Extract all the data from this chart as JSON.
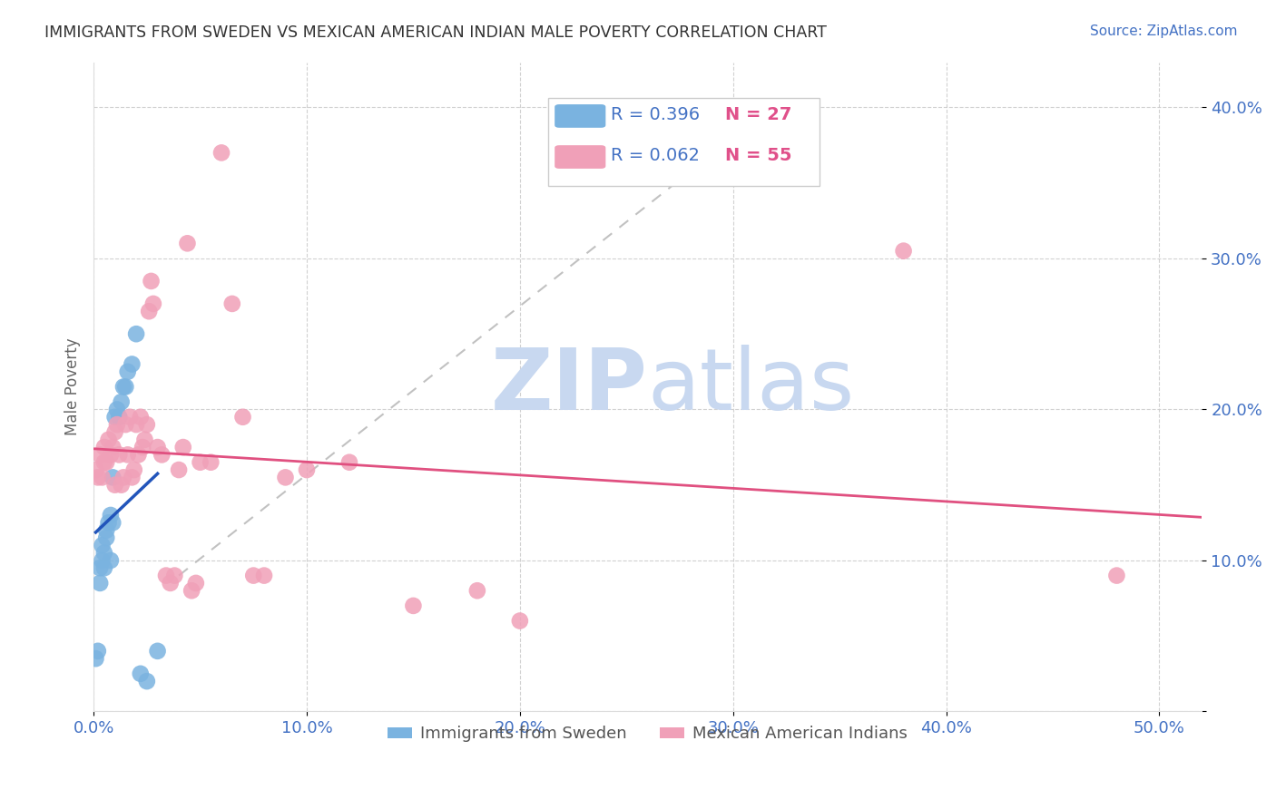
{
  "title": "IMMIGRANTS FROM SWEDEN VS MEXICAN AMERICAN INDIAN MALE POVERTY CORRELATION CHART",
  "source": "Source: ZipAtlas.com",
  "ylabel": "Male Poverty",
  "ytick_values": [
    0.0,
    0.1,
    0.2,
    0.3,
    0.4
  ],
  "ytick_labels": [
    "",
    "10.0%",
    "20.0%",
    "30.0%",
    "40.0%"
  ],
  "xtick_values": [
    0.0,
    0.1,
    0.2,
    0.3,
    0.4,
    0.5
  ],
  "xtick_labels": [
    "0.0%",
    "10.0%",
    "20.0%",
    "30.0%",
    "40.0%",
    "50.0%"
  ],
  "xlim": [
    0.0,
    0.52
  ],
  "ylim": [
    0.0,
    0.43
  ],
  "legend_sweden_R": "R = 0.396",
  "legend_sweden_N": "N = 27",
  "legend_indian_R": "R = 0.062",
  "legend_indian_N": "N = 55",
  "legend_label_sweden": "Immigrants from Sweden",
  "legend_label_indian": "Mexican American Indians",
  "color_sweden": "#7ab3e0",
  "color_indian": "#f0a0b8",
  "trendline_color_sweden": "#2255bb",
  "trendline_color_indian": "#e05080",
  "trendline_color_dashed": "#bbbbbb",
  "watermark_zip": "ZIP",
  "watermark_atlas": "atlas",
  "watermark_color_zip": "#c8d8f0",
  "watermark_color_atlas": "#c8d8f0",
  "background_color": "#ffffff",
  "sweden_x": [
    0.001,
    0.002,
    0.003,
    0.003,
    0.004,
    0.004,
    0.005,
    0.005,
    0.006,
    0.006,
    0.007,
    0.008,
    0.008,
    0.009,
    0.009,
    0.01,
    0.011,
    0.012,
    0.013,
    0.014,
    0.015,
    0.016,
    0.018,
    0.02,
    0.022,
    0.025,
    0.03
  ],
  "sweden_y": [
    0.035,
    0.04,
    0.085,
    0.095,
    0.1,
    0.11,
    0.095,
    0.105,
    0.115,
    0.12,
    0.125,
    0.1,
    0.13,
    0.125,
    0.155,
    0.195,
    0.2,
    0.195,
    0.205,
    0.215,
    0.215,
    0.225,
    0.23,
    0.25,
    0.025,
    0.02,
    0.04
  ],
  "indian_x": [
    0.001,
    0.002,
    0.003,
    0.004,
    0.005,
    0.005,
    0.006,
    0.007,
    0.008,
    0.009,
    0.01,
    0.01,
    0.011,
    0.012,
    0.013,
    0.014,
    0.015,
    0.016,
    0.017,
    0.018,
    0.019,
    0.02,
    0.021,
    0.022,
    0.023,
    0.024,
    0.025,
    0.026,
    0.027,
    0.028,
    0.03,
    0.032,
    0.034,
    0.036,
    0.038,
    0.04,
    0.042,
    0.044,
    0.046,
    0.048,
    0.05,
    0.055,
    0.06,
    0.065,
    0.07,
    0.075,
    0.08,
    0.09,
    0.1,
    0.12,
    0.15,
    0.18,
    0.2,
    0.38,
    0.48
  ],
  "indian_y": [
    0.16,
    0.155,
    0.17,
    0.155,
    0.165,
    0.175,
    0.165,
    0.18,
    0.17,
    0.175,
    0.15,
    0.185,
    0.19,
    0.17,
    0.15,
    0.155,
    0.19,
    0.17,
    0.195,
    0.155,
    0.16,
    0.19,
    0.17,
    0.195,
    0.175,
    0.18,
    0.19,
    0.265,
    0.285,
    0.27,
    0.175,
    0.17,
    0.09,
    0.085,
    0.09,
    0.16,
    0.175,
    0.31,
    0.08,
    0.085,
    0.165,
    0.165,
    0.37,
    0.27,
    0.195,
    0.09,
    0.09,
    0.155,
    0.16,
    0.165,
    0.07,
    0.08,
    0.06,
    0.305,
    0.09
  ]
}
